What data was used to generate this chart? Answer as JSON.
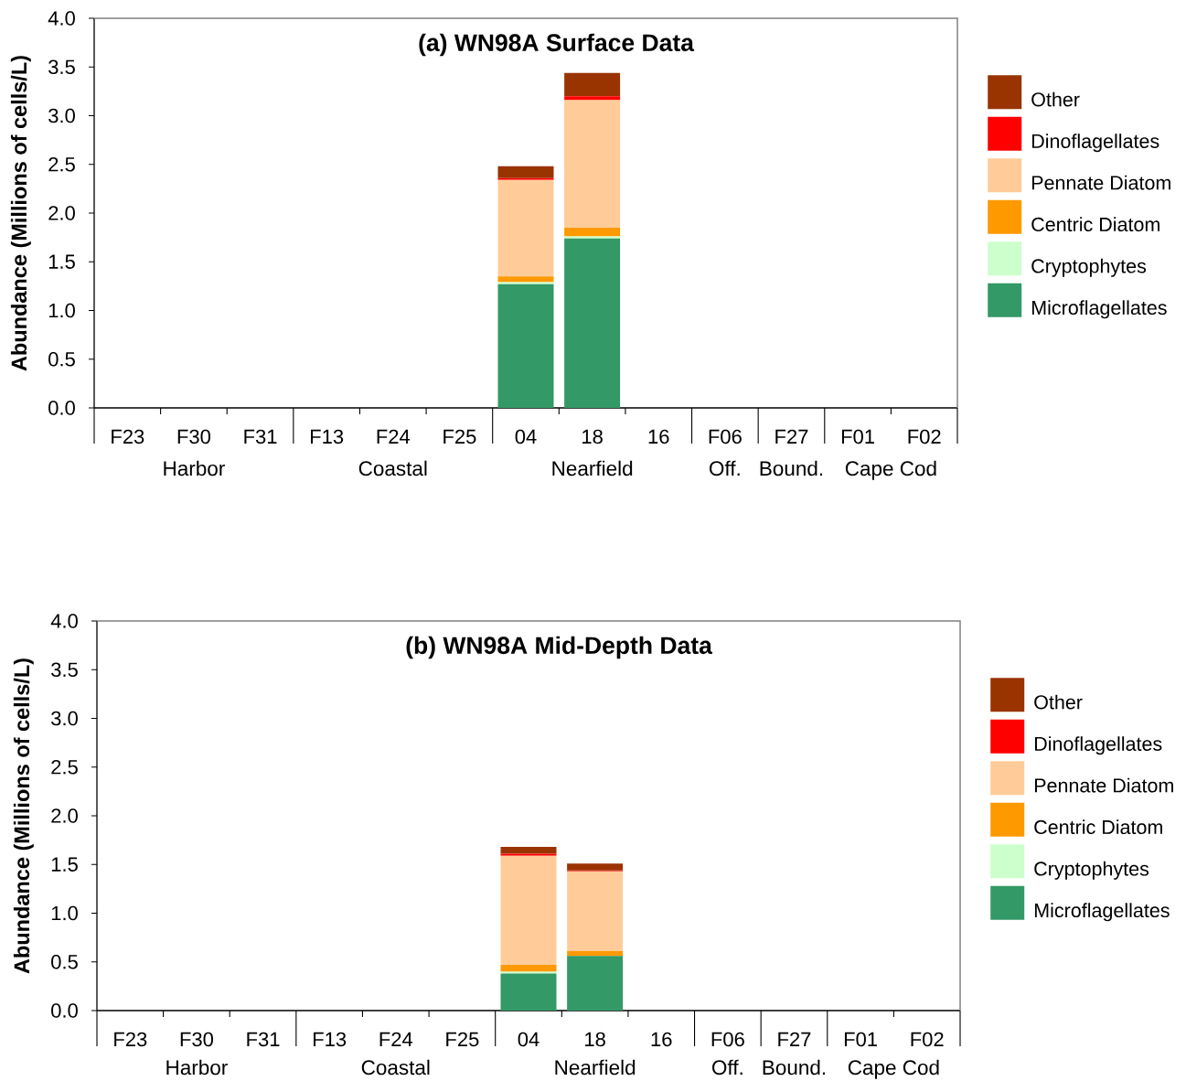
{
  "chart_data": [
    {
      "type": "bar",
      "stacked": true,
      "title": "(a) WN98A Surface Data",
      "ylabel": "Abundance (Millions of cells/L)",
      "categories": [
        "F23",
        "F30",
        "F31",
        "F13",
        "F24",
        "F25",
        "04",
        "18",
        "16",
        "F06",
        "F27",
        "F01",
        "F02"
      ],
      "series": [
        {
          "name": "Microflagellates",
          "color": "#339966",
          "values": [
            null,
            null,
            null,
            null,
            null,
            null,
            1.27,
            1.74,
            null,
            null,
            null,
            null,
            null
          ]
        },
        {
          "name": "Cryptophytes",
          "color": "#ccffcc",
          "values": [
            null,
            null,
            null,
            null,
            null,
            null,
            0.02,
            0.02,
            null,
            null,
            null,
            null,
            null
          ]
        },
        {
          "name": "Centric Diatom",
          "color": "#ff9900",
          "values": [
            null,
            null,
            null,
            null,
            null,
            null,
            0.06,
            0.09,
            null,
            null,
            null,
            null,
            null
          ]
        },
        {
          "name": "Pennate Diatom",
          "color": "#ffcc99",
          "values": [
            null,
            null,
            null,
            null,
            null,
            null,
            0.99,
            1.31,
            null,
            null,
            null,
            null,
            null
          ]
        },
        {
          "name": "Dinoflagellates",
          "color": "#ff0000",
          "values": [
            null,
            null,
            null,
            null,
            null,
            null,
            0.02,
            0.04,
            null,
            null,
            null,
            null,
            null
          ]
        },
        {
          "name": "Other",
          "color": "#993300",
          "values": [
            null,
            null,
            null,
            null,
            null,
            null,
            0.12,
            0.24,
            null,
            null,
            null,
            null,
            null
          ]
        }
      ],
      "ylim": [
        0,
        4
      ],
      "yticks": [
        {
          "value": 0,
          "label": "0.0"
        },
        0.5,
        {
          "value": 1,
          "label": "1.0"
        },
        1.5,
        {
          "value": 2,
          "label": "2.0"
        },
        2.5,
        {
          "value": 3,
          "label": "3.0"
        },
        3.5,
        {
          "value": 4,
          "label": "4.0"
        }
      ],
      "legend": "right",
      "annotations": [
        "Harbor",
        "Coastal",
        "Nearfield",
        "Off.",
        "Bound.",
        "Cape Cod"
      ]
    },
    {
      "type": "bar",
      "stacked": true,
      "title": "(b) WN98A Mid-Depth Data",
      "ylabel": "Abundance (Millions of cells/L)",
      "categories": [
        "F23",
        "F30",
        "F31",
        "F13",
        "F24",
        "F25",
        "04",
        "18",
        "16",
        "F06",
        "F27",
        "F01",
        "F02"
      ],
      "series": [
        {
          "name": "Microflagellates",
          "color": "#339966",
          "values": [
            null,
            null,
            null,
            null,
            null,
            null,
            0.38,
            0.56,
            null,
            null,
            null,
            null,
            null
          ]
        },
        {
          "name": "Cryptophytes",
          "color": "#ccffcc",
          "values": [
            null,
            null,
            null,
            null,
            null,
            null,
            0.02,
            0,
            null,
            null,
            null,
            null,
            null
          ]
        },
        {
          "name": "Centric Diatom",
          "color": "#ff9900",
          "values": [
            null,
            null,
            null,
            null,
            null,
            null,
            0.07,
            0.05,
            null,
            null,
            null,
            null,
            null
          ]
        },
        {
          "name": "Pennate Diatom",
          "color": "#ffcc99",
          "values": [
            null,
            null,
            null,
            null,
            null,
            null,
            1.12,
            0.82,
            null,
            null,
            null,
            null,
            null
          ]
        },
        {
          "name": "Dinoflagellates",
          "color": "#ff0000",
          "values": [
            null,
            null,
            null,
            null,
            null,
            null,
            0.02,
            0.01,
            null,
            null,
            null,
            null,
            null
          ]
        },
        {
          "name": "Other",
          "color": "#993300",
          "values": [
            null,
            null,
            null,
            null,
            null,
            null,
            0.07,
            0.07,
            null,
            null,
            null,
            null,
            null
          ]
        }
      ],
      "ylim": [
        0,
        4
      ],
      "yticks": [
        {
          "value": 0,
          "label": "0.0"
        },
        0.5,
        {
          "value": 1,
          "label": "1.0"
        },
        1.5,
        {
          "value": 2,
          "label": "2.0"
        },
        2.5,
        {
          "value": 3,
          "label": "3.0"
        },
        3.5,
        {
          "value": 4,
          "label": "4.0"
        }
      ],
      "legend": "right",
      "annotations": [
        "Harbor",
        "Coastal",
        "Nearfield",
        "Off.",
        "Bound.",
        "Cape Cod"
      ]
    }
  ]
}
